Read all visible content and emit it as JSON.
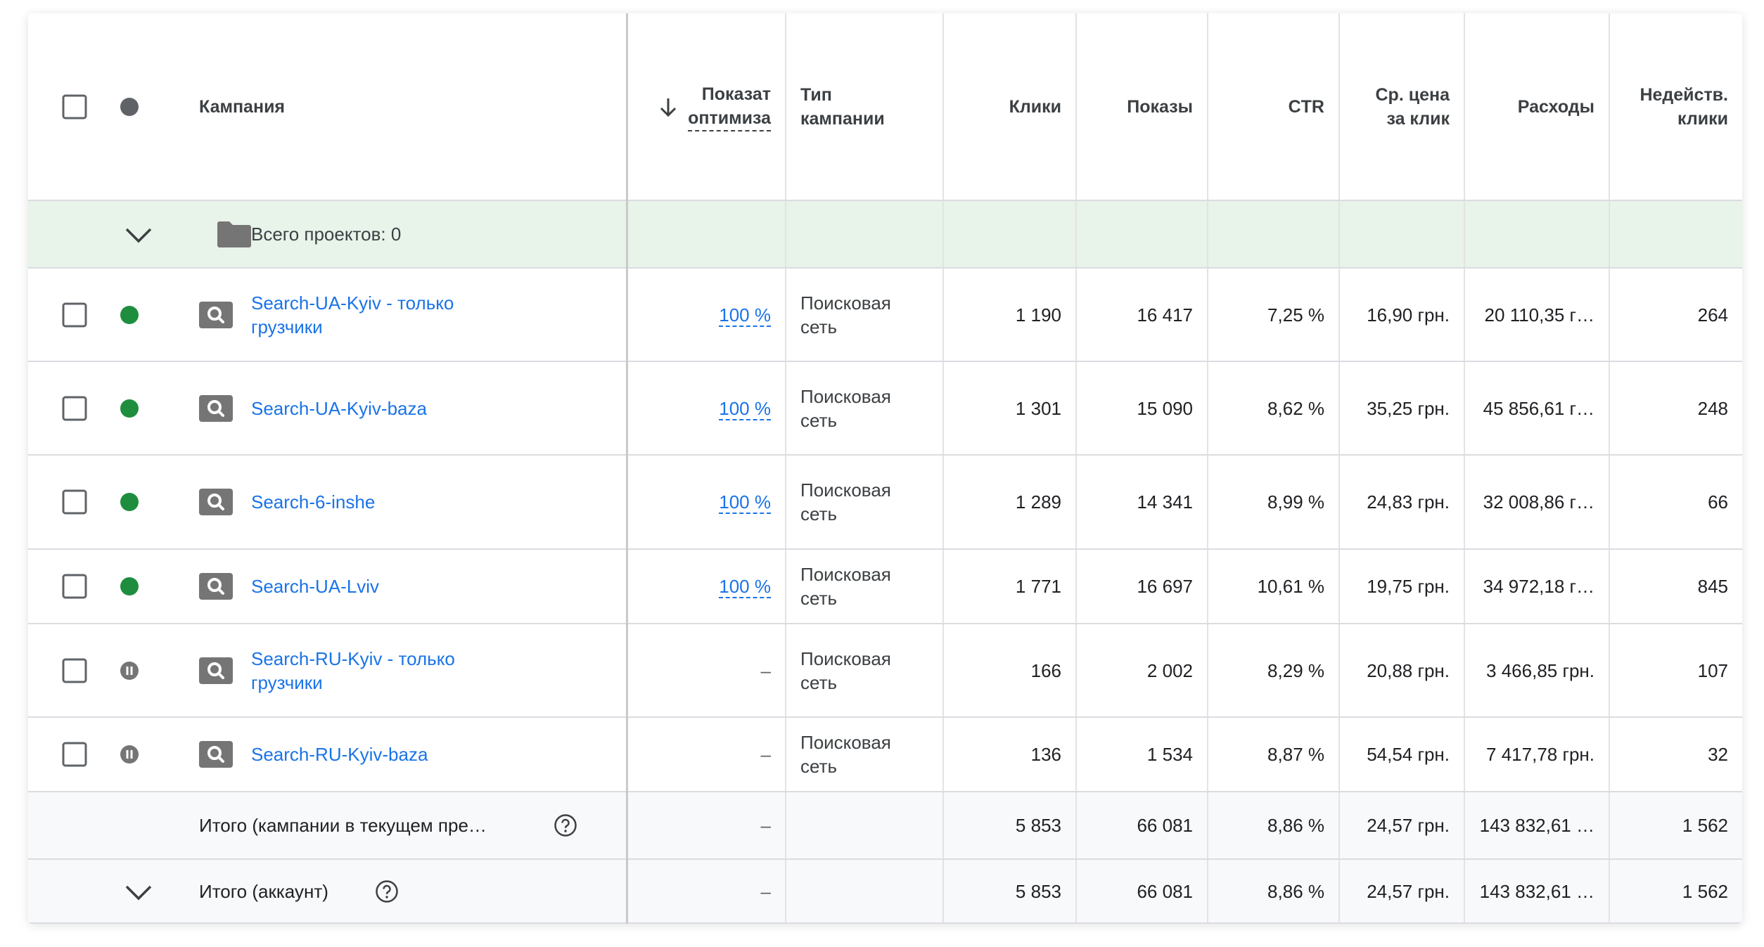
{
  "header": {
    "columns": [
      "Кампания",
      "Показат\nоптимиза",
      "Тип\nкампании",
      "Клики",
      "Показы",
      "CTR",
      "Ср. цена\nза клик",
      "Расходы",
      "Недейств.\nклики"
    ]
  },
  "group_row": {
    "label": "Всего проектов: 0"
  },
  "rows": [
    {
      "status": "enabled",
      "campaign": "Search-UA-Kyiv - только грузчики",
      "optimization": "100 %",
      "type": "Поисковая\nсеть",
      "clicks": "1 190",
      "impressions": "16 417",
      "ctr": "7,25 %",
      "cpc": "16,90 грн.",
      "cost": "20 110,35 г…",
      "invalid_clicks": "264"
    },
    {
      "status": "enabled",
      "campaign": "Search-UA-Kyiv-baza",
      "optimization": "100 %",
      "type": "Поисковая\nсеть",
      "clicks": "1 301",
      "impressions": "15 090",
      "ctr": "8,62 %",
      "cpc": "35,25 грн.",
      "cost": "45 856,61 г…",
      "invalid_clicks": "248"
    },
    {
      "status": "enabled",
      "campaign": "Search-6-inshe",
      "optimization": "100 %",
      "type": "Поисковая\nсеть",
      "clicks": "1 289",
      "impressions": "14 341",
      "ctr": "8,99 %",
      "cpc": "24,83 грн.",
      "cost": "32 008,86 г…",
      "invalid_clicks": "66"
    },
    {
      "status": "enabled",
      "campaign": "Search-UA-Lviv",
      "optimization": "100 %",
      "type": "Поисковая\nсеть",
      "clicks": "1 771",
      "impressions": "16 697",
      "ctr": "10,61 %",
      "cpc": "19,75 грн.",
      "cost": "34 972,18 г…",
      "invalid_clicks": "845"
    },
    {
      "status": "paused",
      "campaign": "Search-RU-Kyiv - только грузчики",
      "optimization": "–",
      "type": "Поисковая\nсеть",
      "clicks": "166",
      "impressions": "2 002",
      "ctr": "8,29 %",
      "cpc": "20,88 грн.",
      "cost": "3 466,85 грн.",
      "invalid_clicks": "107"
    },
    {
      "status": "paused",
      "campaign": "Search-RU-Kyiv-baza",
      "optimization": "–",
      "type": "Поисковая\nсеть",
      "clicks": "136",
      "impressions": "1 534",
      "ctr": "8,87 %",
      "cpc": "54,54 грн.",
      "cost": "7 417,78 грн.",
      "invalid_clicks": "32"
    }
  ],
  "totals": [
    {
      "label": "Итого (кампании в текущем пре…",
      "optimization": "–",
      "clicks": "5 853",
      "impressions": "66 081",
      "ctr": "8,86 %",
      "cpc": "24,57 грн.",
      "cost": "143 832,61 …",
      "invalid_clicks": "1 562"
    },
    {
      "label": "Итого (аккаунт)",
      "optimization": "–",
      "clicks": "5 853",
      "impressions": "66 081",
      "ctr": "8,86 %",
      "cpc": "24,57 грн.",
      "cost": "143 832,61 …",
      "invalid_clicks": "1 562"
    }
  ]
}
